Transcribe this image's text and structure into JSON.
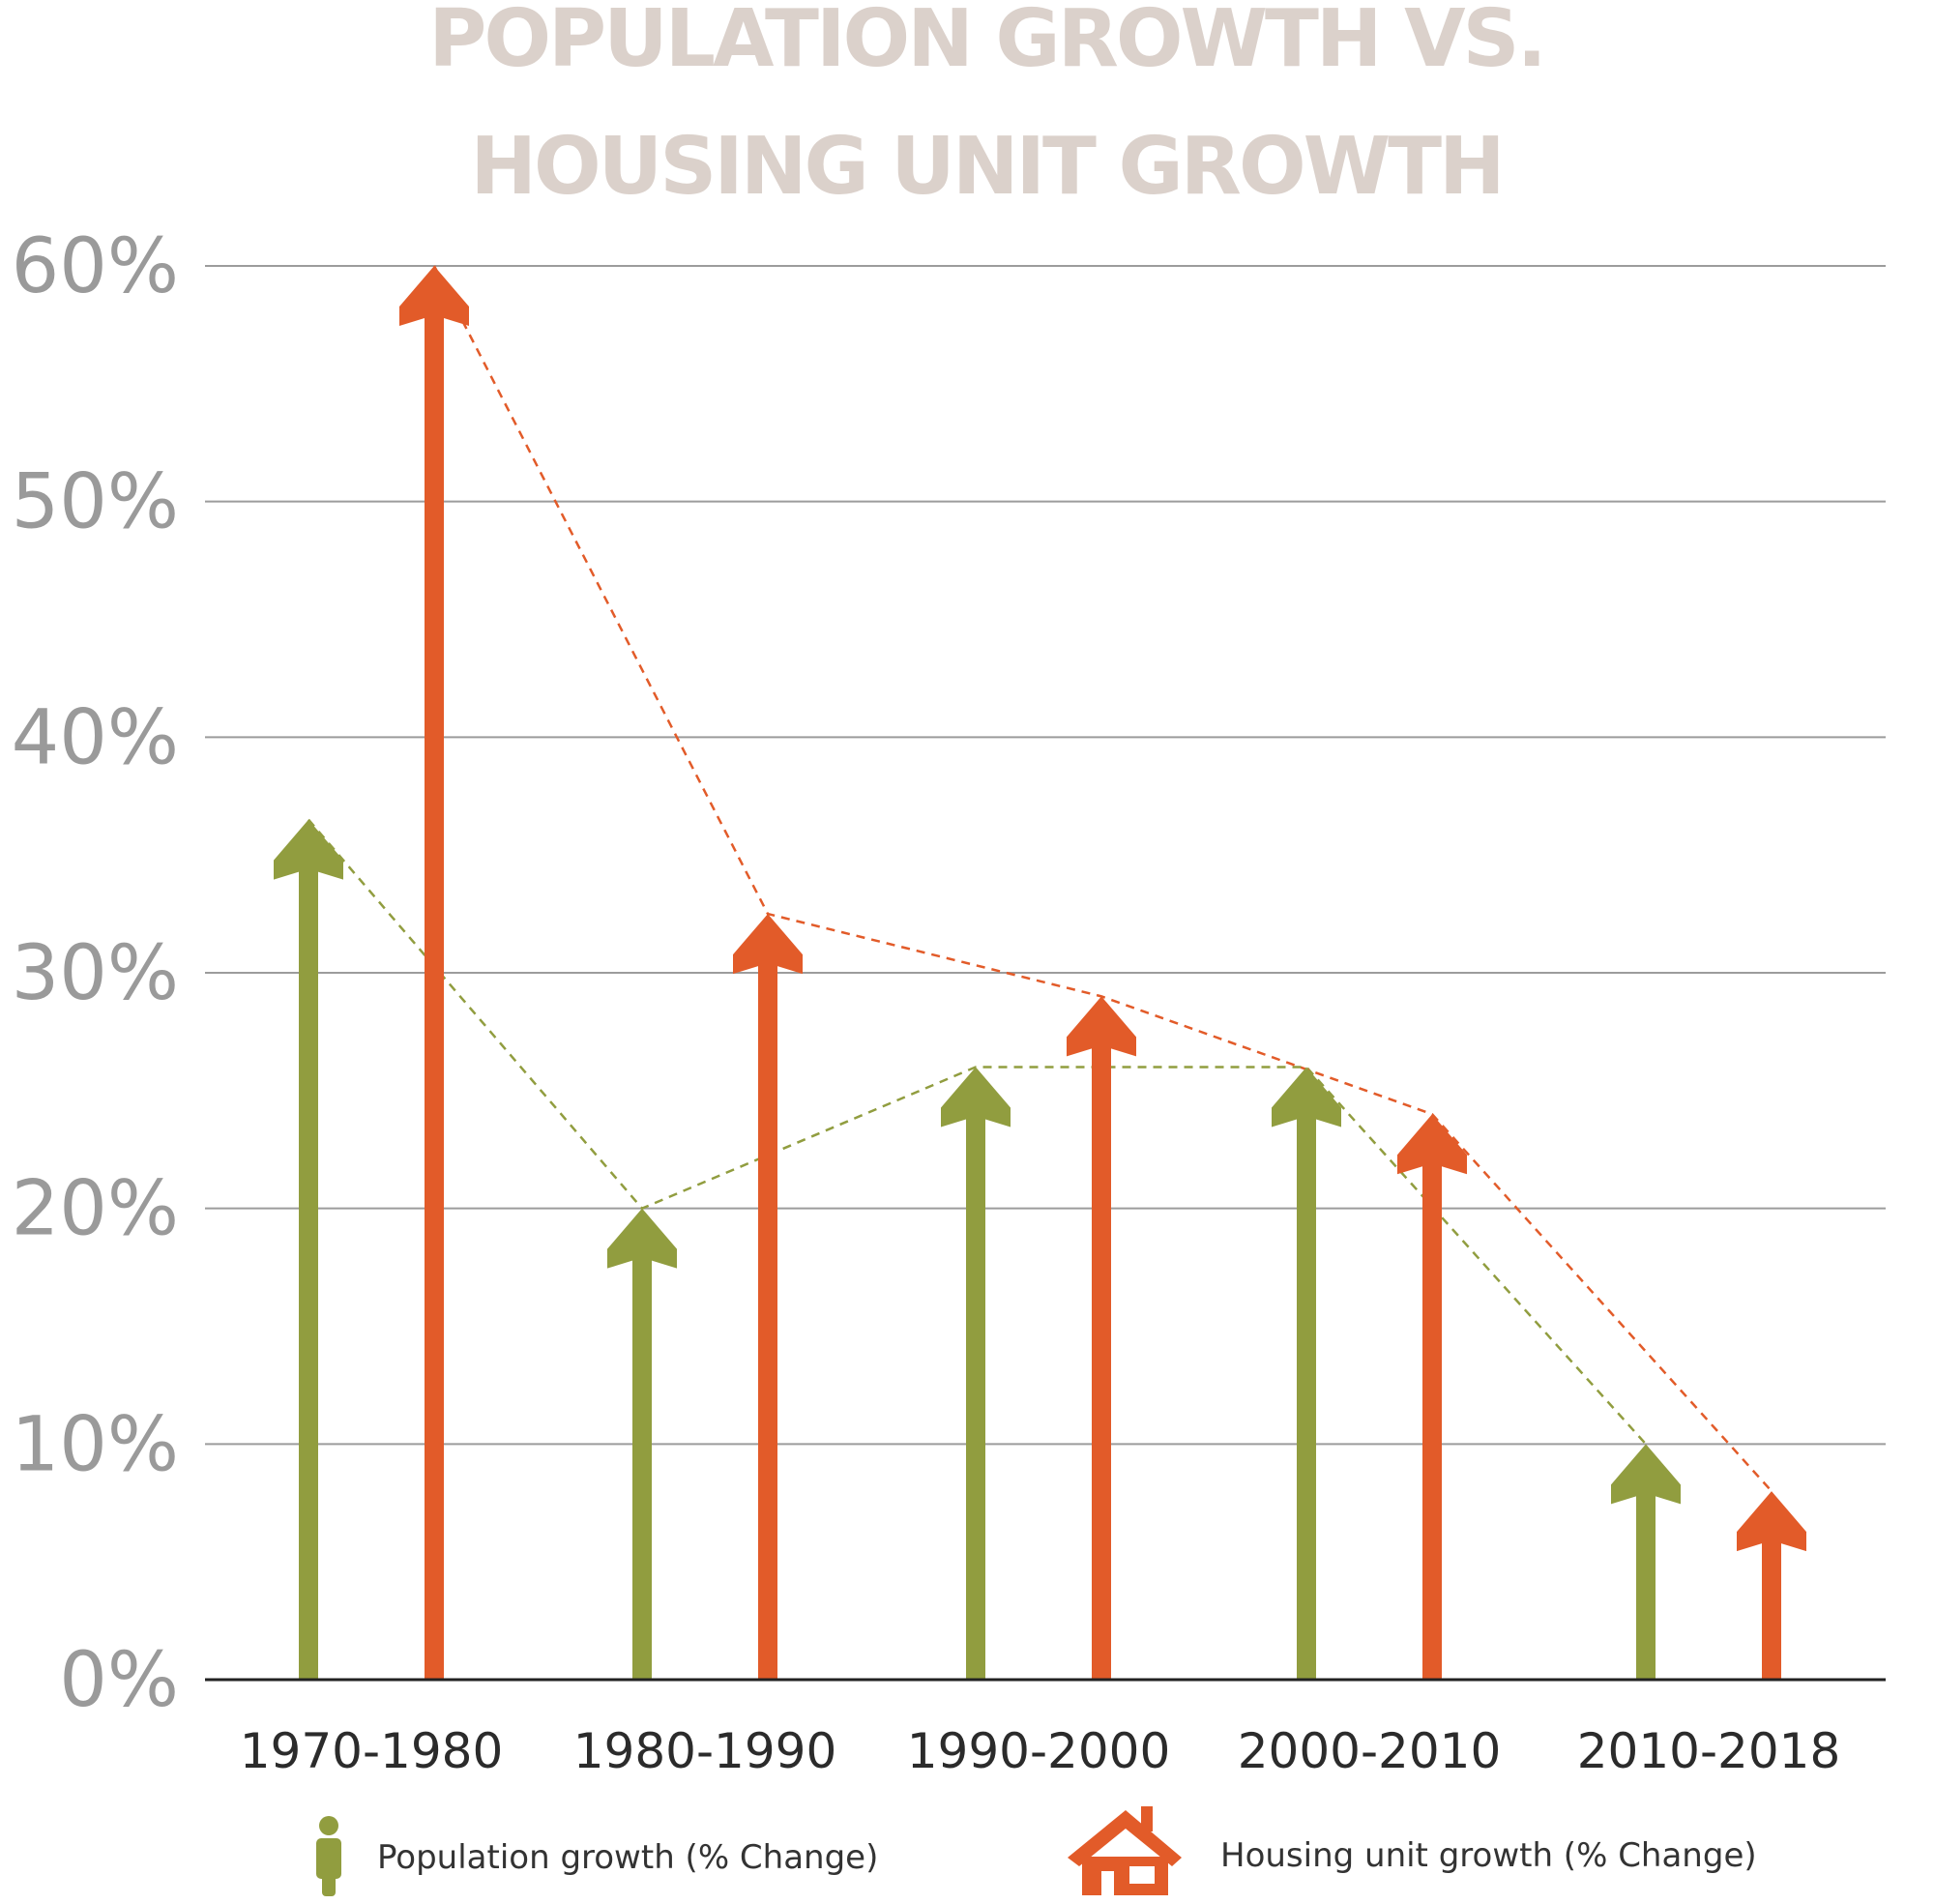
{
  "colors": {
    "population": "#919d3f",
    "housing": "#e25b29",
    "title": "#dbd1cb",
    "axis_text": "#9a9a9a",
    "category_text": "#2b2b2b",
    "legend_text": "#333333",
    "grid": "#9c9c9c",
    "baseline": "#222222"
  },
  "legend": {
    "population_icon": "person-icon",
    "housing_icon": "house-icon",
    "placement": "bottom"
  },
  "chart_data": {
    "type": "bar",
    "title_lines": [
      "POPULATION GROWTH VS.",
      "HOUSING UNIT GROWTH"
    ],
    "xlabel": "",
    "ylabel": "",
    "categories": [
      "1970-1980",
      "1980-1990",
      "1990-2000",
      "2000-2010",
      "2010-2018"
    ],
    "yticks": [
      "0%",
      "10%",
      "20%",
      "30%",
      "40%",
      "50%",
      "60%"
    ],
    "ylim": [
      0,
      60
    ],
    "grid": true,
    "series": [
      {
        "name": "Population growth (% Change)",
        "values": [
          36.5,
          20,
          26,
          26,
          10
        ]
      },
      {
        "name": "Housing unit growth (% Change)",
        "values": [
          60,
          32.5,
          29,
          24,
          8
        ]
      }
    ]
  }
}
